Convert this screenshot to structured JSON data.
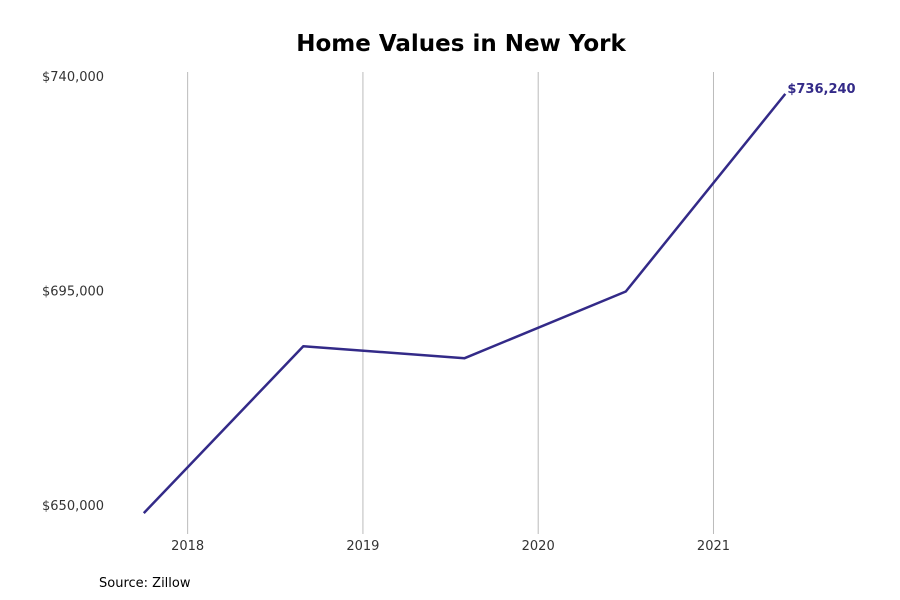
{
  "chart_data": {
    "type": "line",
    "title": "Home Values in New York",
    "xlabel": "",
    "ylabel": "",
    "x": [
      2017.75,
      2018.66,
      2019.58,
      2020.5,
      2021.41
    ],
    "values": [
      648300,
      683300,
      680800,
      694800,
      736240
    ],
    "xlim": [
      2017.5,
      2021.95
    ],
    "ylim": [
      650000,
      740000
    ],
    "x_ticks": [
      2018,
      2019,
      2020,
      2021
    ],
    "x_tick_labels": [
      "2018",
      "2019",
      "2020",
      "2021"
    ],
    "y_ticks": [
      650000,
      695000,
      740000
    ],
    "y_tick_labels": [
      "$650,000",
      "$695,000",
      "$740,000"
    ],
    "grid": "vertical",
    "legend": "none",
    "end_label": "$736,240",
    "line_color": "#332a88"
  },
  "source": "Source: Zillow"
}
